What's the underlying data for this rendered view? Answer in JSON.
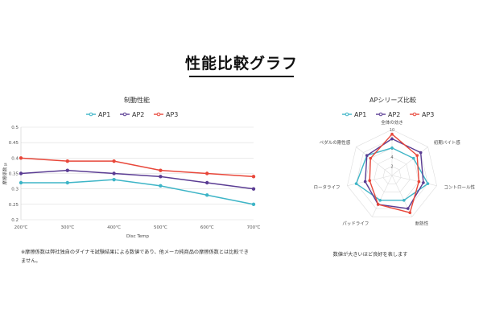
{
  "page_title": "性能比較グラフ",
  "colors": {
    "AP1": "#3eb5c7",
    "AP2": "#5a3c93",
    "AP3": "#e8473a",
    "grid": "#dddddd"
  },
  "chart_data": [
    {
      "type": "line",
      "title": "制動性能",
      "xlabel": "Disc Temp",
      "ylabel": "摩擦係数 μ",
      "categories": [
        "200℃",
        "300℃",
        "400℃",
        "500℃",
        "600℃",
        "700℃"
      ],
      "y_ticks": [
        "0.2",
        "0.25",
        "0.3",
        "0.35",
        "0.4",
        "0.45",
        "0.5"
      ],
      "ylim": [
        0.2,
        0.5
      ],
      "grid": "horizontal",
      "legend": "top-center",
      "series": [
        {
          "name": "AP1",
          "values": [
            0.32,
            0.32,
            0.33,
            0.31,
            0.28,
            0.25
          ]
        },
        {
          "name": "AP2",
          "values": [
            0.35,
            0.36,
            0.35,
            0.34,
            0.32,
            0.3
          ]
        },
        {
          "name": "AP3",
          "values": [
            0.4,
            0.39,
            0.39,
            0.36,
            0.35,
            0.34
          ]
        }
      ],
      "note": "※摩擦係数は弊社独自のダイナモ試験結果による数値であり、他メーカ純商品の摩擦係数とは比較でき",
      "note2": "ません。"
    },
    {
      "type": "radar",
      "title": "APシリーズ比較",
      "axes": [
        "全体の効き",
        "初期バイト感",
        "コントロール性",
        "耐熱性",
        "パッドライフ",
        "ロータライフ",
        "ペダルの剛性感"
      ],
      "r_ticks": [
        "2",
        "4",
        "6",
        "8",
        "10"
      ],
      "rlim": [
        0,
        10
      ],
      "legend": "top-center",
      "series": [
        {
          "name": "AP1",
          "values": [
            6,
            6,
            8,
            6,
            6,
            8,
            7
          ]
        },
        {
          "name": "AP2",
          "values": [
            8,
            8,
            7,
            8,
            7,
            6,
            7
          ]
        },
        {
          "name": "AP3",
          "values": [
            9,
            7,
            6,
            9,
            7,
            5,
            6
          ]
        }
      ],
      "note": "数値が大きいほど良好を表します"
    }
  ]
}
